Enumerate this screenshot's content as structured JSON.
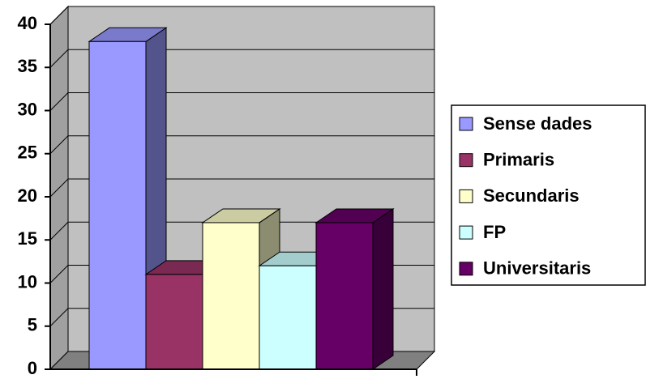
{
  "chart_data": {
    "type": "bar3d",
    "categories": [
      null
    ],
    "series": [
      {
        "name": "Sense dades",
        "color": "#9999ff",
        "values": [
          38
        ]
      },
      {
        "name": "Primaris",
        "color": "#993366",
        "values": [
          11
        ]
      },
      {
        "name": "Secundaris",
        "color": "#ffffcc",
        "values": [
          17
        ]
      },
      {
        "name": "FP",
        "color": "#ccffff",
        "values": [
          12
        ]
      },
      {
        "name": "Universitaris",
        "color": "#660066",
        "values": [
          17
        ]
      }
    ],
    "ylim": [
      0,
      40
    ],
    "yticks": [
      0,
      5,
      10,
      15,
      20,
      25,
      30,
      35,
      40
    ],
    "grid": true,
    "legend": "right"
  }
}
